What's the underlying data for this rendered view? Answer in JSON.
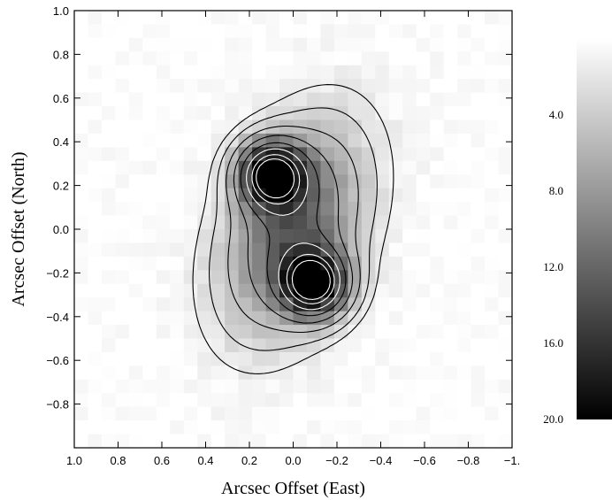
{
  "chart_data": {
    "type": "heatmap",
    "title": "",
    "xlabel": "Arcsec Offset (East)",
    "ylabel": "Arcsec Offset (North)",
    "xlim": [
      1.0,
      -1.0
    ],
    "ylim": [
      -1.0,
      1.0
    ],
    "x_ticks": [
      "1.0",
      "0.8",
      "0.6",
      "0.4",
      "0.2",
      "0.0",
      "−0.2",
      "−0.4",
      "−0.6",
      "−0.8",
      "−1."
    ],
    "y_ticks": [
      "1.0",
      "0.8",
      "0.6",
      "0.4",
      "0.2",
      "0.0",
      "−0.2",
      "−0.4",
      "−0.6",
      "−0.8"
    ],
    "colorbar": {
      "range": [
        0,
        20.0
      ],
      "ticks": [
        "4.0",
        "8.0",
        "12.0",
        "16.0",
        "20.0"
      ],
      "colormap": "white-to-black"
    },
    "sources": [
      {
        "x": 0.1,
        "y": 0.25,
        "peak": 20.0
      },
      {
        "x": -0.1,
        "y": -0.25,
        "peak": 20.0
      }
    ],
    "contour_levels": [
      1.5,
      2.8,
      5,
      8,
      11.5,
      15,
      18.5,
      21
    ],
    "contour_colors": [
      "#000000",
      "#000000",
      "#000000",
      "#000000",
      "#000000",
      "#ffffff",
      "#ffffff",
      "#ffffff"
    ],
    "grid": false
  }
}
